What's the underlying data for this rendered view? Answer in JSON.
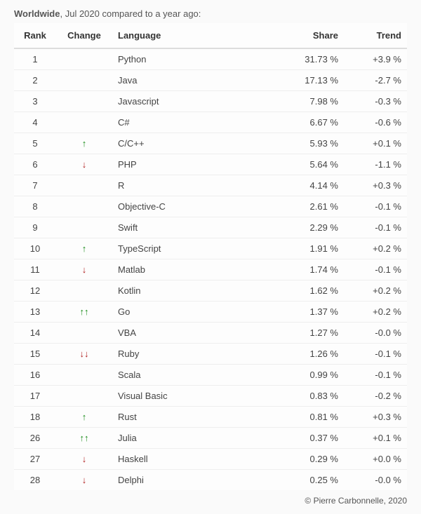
{
  "caption": {
    "region": "Worldwide",
    "rest": ", Jul 2020 compared to a year ago:"
  },
  "table": {
    "columns": {
      "rank": "Rank",
      "change": "Change",
      "language": "Language",
      "share": "Share",
      "trend": "Trend"
    },
    "rows": [
      {
        "rank": "1",
        "change": "",
        "language": "Python",
        "share": "31.73 %",
        "trend": "+3.9 %"
      },
      {
        "rank": "2",
        "change": "",
        "language": "Java",
        "share": "17.13 %",
        "trend": "-2.7 %"
      },
      {
        "rank": "3",
        "change": "",
        "language": "Javascript",
        "share": "7.98 %",
        "trend": "-0.3 %"
      },
      {
        "rank": "4",
        "change": "",
        "language": "C#",
        "share": "6.67 %",
        "trend": "-0.6 %"
      },
      {
        "rank": "5",
        "change": "up",
        "language": "C/C++",
        "share": "5.93 %",
        "trend": "+0.1 %"
      },
      {
        "rank": "6",
        "change": "down",
        "language": "PHP",
        "share": "5.64 %",
        "trend": "-1.1 %"
      },
      {
        "rank": "7",
        "change": "",
        "language": "R",
        "share": "4.14 %",
        "trend": "+0.3 %"
      },
      {
        "rank": "8",
        "change": "",
        "language": "Objective-C",
        "share": "2.61 %",
        "trend": "-0.1 %"
      },
      {
        "rank": "9",
        "change": "",
        "language": "Swift",
        "share": "2.29 %",
        "trend": "-0.1 %"
      },
      {
        "rank": "10",
        "change": "up",
        "language": "TypeScript",
        "share": "1.91 %",
        "trend": "+0.2 %"
      },
      {
        "rank": "11",
        "change": "down",
        "language": "Matlab",
        "share": "1.74 %",
        "trend": "-0.1 %"
      },
      {
        "rank": "12",
        "change": "",
        "language": "Kotlin",
        "share": "1.62 %",
        "trend": "+0.2 %"
      },
      {
        "rank": "13",
        "change": "upup",
        "language": "Go",
        "share": "1.37 %",
        "trend": "+0.2 %"
      },
      {
        "rank": "14",
        "change": "",
        "language": "VBA",
        "share": "1.27 %",
        "trend": "-0.0 %"
      },
      {
        "rank": "15",
        "change": "downdown",
        "language": "Ruby",
        "share": "1.26 %",
        "trend": "-0.1 %"
      },
      {
        "rank": "16",
        "change": "",
        "language": "Scala",
        "share": "0.99 %",
        "trend": "-0.1 %"
      },
      {
        "rank": "17",
        "change": "",
        "language": "Visual Basic",
        "share": "0.83 %",
        "trend": "-0.2 %"
      },
      {
        "rank": "18",
        "change": "up",
        "language": "Rust",
        "share": "0.81 %",
        "trend": "+0.3 %"
      },
      {
        "rank": "26",
        "change": "upup",
        "language": "Julia",
        "share": "0.37 %",
        "trend": "+0.1 %"
      },
      {
        "rank": "27",
        "change": "down",
        "language": "Haskell",
        "share": "0.29 %",
        "trend": "+0.0 %"
      },
      {
        "rank": "28",
        "change": "down",
        "language": "Delphi",
        "share": "0.25 %",
        "trend": "-0.0 %"
      }
    ]
  },
  "arrows": {
    "up": "↑",
    "upup": "↑↑",
    "down": "↓",
    "downdown": "↓↓"
  },
  "colors": {
    "up": "#1a8c1a",
    "down": "#b02020",
    "text": "#444444",
    "border": "#eeeeee",
    "header_border": "#dddddd",
    "background": "#fafafa"
  },
  "copyright": "© Pierre Carbonnelle, 2020"
}
